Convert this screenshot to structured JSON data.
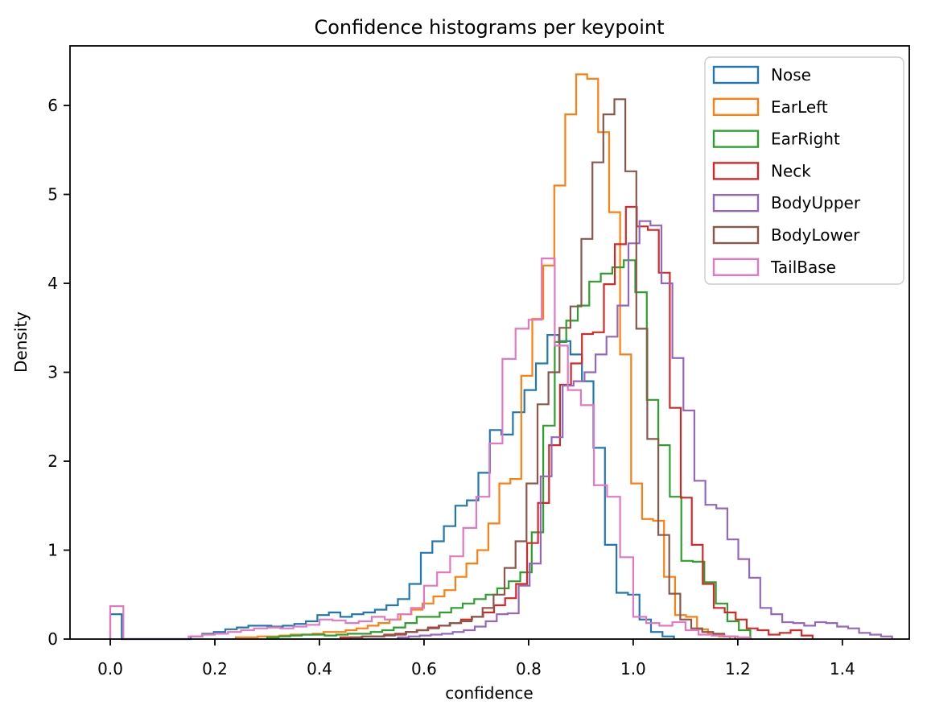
{
  "chart_data": {
    "type": "histogram-step",
    "title": "Confidence histograms per keypoint",
    "xlabel": "confidence",
    "ylabel": "Density",
    "xlim": [
      -0.077,
      1.528
    ],
    "ylim": [
      0,
      6.67
    ],
    "x_ticks": [
      0.0,
      0.2,
      0.4,
      0.6,
      0.8,
      1.0,
      1.2,
      1.4
    ],
    "x_tick_labels": [
      "0.0",
      "0.2",
      "0.4",
      "0.6",
      "0.8",
      "1.0",
      "1.2",
      "1.4"
    ],
    "y_ticks": [
      0,
      1,
      2,
      3,
      4,
      5,
      6
    ],
    "y_tick_labels": [
      "0",
      "1",
      "2",
      "3",
      "4",
      "5",
      "6"
    ],
    "grid": false,
    "legend_position": "upper right",
    "value_kind": "probability density per confidence bin",
    "series": [
      {
        "name": "Nose",
        "color": "#1f77b4",
        "bin_start": 0.0,
        "bin_width": 0.022,
        "densities": [
          0.28,
          0,
          0,
          0,
          0,
          0,
          0,
          0.03,
          0.06,
          0.08,
          0.11,
          0.13,
          0.15,
          0.15,
          0.14,
          0.15,
          0.17,
          0.2,
          0.27,
          0.3,
          0.25,
          0.28,
          0.3,
          0.33,
          0.38,
          0.45,
          0.62,
          0.97,
          1.1,
          1.27,
          1.5,
          1.56,
          1.87,
          2.35,
          2.3,
          2.55,
          2.8,
          3.1,
          3.42,
          3.35,
          3.2,
          2.9,
          2.15,
          1.06,
          0.52,
          0.5,
          0.22,
          0.08,
          0.03
        ]
      },
      {
        "name": "EarLeft",
        "color": "#ff7f0e",
        "bin_start": 0.24,
        "bin_width": 0.021,
        "densities": [
          0.02,
          0.02,
          0.03,
          0.03,
          0.04,
          0.05,
          0.05,
          0.06,
          0.08,
          0.08,
          0.1,
          0.12,
          0.15,
          0.18,
          0.22,
          0.28,
          0.33,
          0.4,
          0.48,
          0.55,
          0.7,
          0.85,
          1.0,
          1.3,
          1.75,
          1.8,
          2.96,
          3.6,
          4.2,
          5.1,
          5.9,
          6.35,
          6.3,
          5.7,
          4.8,
          3.2,
          1.75,
          1.35,
          1.33,
          0.7,
          0.27,
          0.25,
          0.11,
          0.06,
          0.03
        ]
      },
      {
        "name": "EarRight",
        "color": "#2ca02c",
        "bin_start": 0.3,
        "bin_width": 0.022,
        "densities": [
          0.02,
          0.03,
          0.04,
          0.05,
          0.05,
          0.04,
          0.05,
          0.06,
          0.06,
          0.08,
          0.1,
          0.13,
          0.18,
          0.25,
          0.25,
          0.3,
          0.35,
          0.4,
          0.45,
          0.5,
          0.57,
          0.65,
          0.75,
          1.2,
          2.4,
          3.34,
          3.58,
          3.75,
          4.02,
          4.11,
          4.18,
          4.26,
          3.9,
          2.69,
          2.18,
          1.6,
          0.88,
          0.87,
          0.64,
          0.4,
          0.2,
          0.1
        ]
      },
      {
        "name": "Neck",
        "color": "#d62728",
        "bin_start": 0.44,
        "bin_width": 0.021,
        "densities": [
          0.02,
          0.02,
          0.03,
          0.03,
          0.05,
          0.06,
          0.08,
          0.1,
          0.13,
          0.15,
          0.18,
          0.22,
          0.25,
          0.3,
          0.38,
          0.46,
          0.62,
          1.08,
          1.53,
          2.18,
          2.86,
          3.1,
          3.43,
          3.45,
          3.99,
          4.44,
          4.86,
          4.64,
          4.6,
          4.12,
          2.6,
          1.59,
          1.06,
          0.62,
          0.35,
          0.3,
          0.22,
          0.12,
          0.1,
          0.05,
          0.07,
          0.1,
          0.04
        ]
      },
      {
        "name": "BodyUpper",
        "color": "#9467bd",
        "bin_start": 0.55,
        "bin_width": 0.021,
        "densities": [
          0.02,
          0.03,
          0.04,
          0.05,
          0.06,
          0.08,
          0.1,
          0.14,
          0.2,
          0.28,
          0.29,
          0.6,
          0.85,
          1.83,
          2.27,
          2.85,
          2.9,
          3.0,
          3.2,
          3.4,
          3.75,
          4.45,
          4.7,
          4.65,
          4.0,
          3.16,
          2.57,
          1.78,
          1.51,
          1.47,
          1.12,
          0.9,
          0.69,
          0.35,
          0.28,
          0.19,
          0.18,
          0.15,
          0.19,
          0.18,
          0.14,
          0.12,
          0.07,
          0.05,
          0.03
        ]
      },
      {
        "name": "BodyLower",
        "color": "#8c564b",
        "bin_start": 0.46,
        "bin_width": 0.021,
        "densities": [
          0.02,
          0.03,
          0.03,
          0.04,
          0.05,
          0.08,
          0.1,
          0.12,
          0.15,
          0.18,
          0.2,
          0.25,
          0.35,
          0.5,
          0.8,
          1.1,
          1.75,
          2.64,
          3.0,
          3.5,
          3.74,
          4.5,
          5.36,
          5.9,
          6.07,
          5.26,
          3.49,
          2.25,
          1.17,
          0.51,
          0.22,
          0.12,
          0.08,
          0.06,
          0.03
        ]
      },
      {
        "name": "TailBase",
        "color": "#e377c2",
        "bin_start": 0.0,
        "bin_width": 0.025,
        "densities": [
          0.37,
          0,
          0,
          0,
          0,
          0,
          0.03,
          0.05,
          0.06,
          0.08,
          0.1,
          0.12,
          0.13,
          0.12,
          0.14,
          0.16,
          0.22,
          0.21,
          0.18,
          0.2,
          0.25,
          0.22,
          0.28,
          0.35,
          0.6,
          0.75,
          0.93,
          1.25,
          1.6,
          2.2,
          3.15,
          3.49,
          3.59,
          4.28,
          3.3,
          2.8,
          2.63,
          1.73,
          1.6,
          0.92,
          0.25,
          0.18,
          0.15,
          0.19,
          0.1,
          0.05,
          0.04,
          0.03,
          0.02
        ]
      }
    ]
  }
}
